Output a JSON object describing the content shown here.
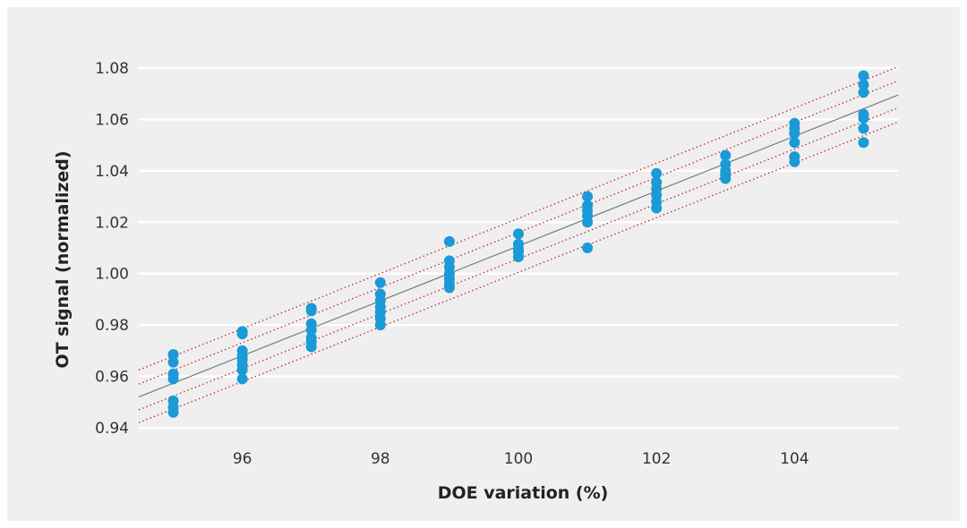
{
  "chart_data": {
    "type": "scatter",
    "title": "",
    "xlabel": "DOE variation (%)",
    "ylabel": "OT signal (normalized)",
    "xlim": [
      94.5,
      105.5
    ],
    "ylim": [
      0.94,
      1.08
    ],
    "x_ticks": [
      96,
      98,
      100,
      102,
      104
    ],
    "x_tick_labels": [
      "96",
      "98",
      "100",
      "102",
      "104"
    ],
    "y_ticks": [
      0.94,
      0.96,
      0.98,
      1.0,
      1.02,
      1.04,
      1.06,
      1.08
    ],
    "y_tick_labels": [
      "0.94",
      "0.96",
      "0.98",
      "1.00",
      "1.02",
      "1.04",
      "1.06",
      "1.08"
    ],
    "grid": "horizontal",
    "series": [
      {
        "color": "#1a9ad6",
        "points": [
          {
            "x": 95,
            "y": 0.9685
          },
          {
            "x": 95,
            "y": 0.9655
          },
          {
            "x": 95,
            "y": 0.961
          },
          {
            "x": 95,
            "y": 0.959
          },
          {
            "x": 95,
            "y": 0.9505
          },
          {
            "x": 95,
            "y": 0.948
          },
          {
            "x": 95,
            "y": 0.946
          },
          {
            "x": 96,
            "y": 0.9775
          },
          {
            "x": 96,
            "y": 0.9765
          },
          {
            "x": 96,
            "y": 0.97
          },
          {
            "x": 96,
            "y": 0.968
          },
          {
            "x": 96,
            "y": 0.9665
          },
          {
            "x": 96,
            "y": 0.9645
          },
          {
            "x": 96,
            "y": 0.9625
          },
          {
            "x": 96,
            "y": 0.959
          },
          {
            "x": 97,
            "y": 0.9865
          },
          {
            "x": 97,
            "y": 0.9855
          },
          {
            "x": 97,
            "y": 0.9805
          },
          {
            "x": 97,
            "y": 0.978
          },
          {
            "x": 97,
            "y": 0.975
          },
          {
            "x": 97,
            "y": 0.9735
          },
          {
            "x": 97,
            "y": 0.9715
          },
          {
            "x": 98,
            "y": 0.9965
          },
          {
            "x": 98,
            "y": 0.992
          },
          {
            "x": 98,
            "y": 0.9895
          },
          {
            "x": 98,
            "y": 0.987
          },
          {
            "x": 98,
            "y": 0.985
          },
          {
            "x": 98,
            "y": 0.9825
          },
          {
            "x": 98,
            "y": 0.98
          },
          {
            "x": 99,
            "y": 1.0125
          },
          {
            "x": 99,
            "y": 1.005
          },
          {
            "x": 99,
            "y": 1.0025
          },
          {
            "x": 99,
            "y": 1.0
          },
          {
            "x": 99,
            "y": 0.998
          },
          {
            "x": 99,
            "y": 0.996
          },
          {
            "x": 99,
            "y": 0.9945
          },
          {
            "x": 100,
            "y": 1.0155
          },
          {
            "x": 100,
            "y": 1.0115
          },
          {
            "x": 100,
            "y": 1.0095
          },
          {
            "x": 100,
            "y": 1.0085
          },
          {
            "x": 100,
            "y": 1.0065
          },
          {
            "x": 101,
            "y": 1.03
          },
          {
            "x": 101,
            "y": 1.0265
          },
          {
            "x": 101,
            "y": 1.0245
          },
          {
            "x": 101,
            "y": 1.0225
          },
          {
            "x": 101,
            "y": 1.02
          },
          {
            "x": 101,
            "y": 1.01
          },
          {
            "x": 102,
            "y": 1.039
          },
          {
            "x": 102,
            "y": 1.0355
          },
          {
            "x": 102,
            "y": 1.033
          },
          {
            "x": 102,
            "y": 1.0305
          },
          {
            "x": 102,
            "y": 1.028
          },
          {
            "x": 102,
            "y": 1.0255
          },
          {
            "x": 103,
            "y": 1.046
          },
          {
            "x": 103,
            "y": 1.0425
          },
          {
            "x": 103,
            "y": 1.04
          },
          {
            "x": 103,
            "y": 1.0385
          },
          {
            "x": 103,
            "y": 1.037
          },
          {
            "x": 104,
            "y": 1.0585
          },
          {
            "x": 104,
            "y": 1.0565
          },
          {
            "x": 104,
            "y": 1.0545
          },
          {
            "x": 104,
            "y": 1.051
          },
          {
            "x": 104,
            "y": 1.0455
          },
          {
            "x": 104,
            "y": 1.0435
          },
          {
            "x": 105,
            "y": 1.077
          },
          {
            "x": 105,
            "y": 1.0735
          },
          {
            "x": 105,
            "y": 1.0705
          },
          {
            "x": 105,
            "y": 1.062
          },
          {
            "x": 105,
            "y": 1.0605
          },
          {
            "x": 105,
            "y": 1.0565
          },
          {
            "x": 105,
            "y": 1.051
          }
        ]
      }
    ],
    "fit_line": {
      "color": "#7a7a7a",
      "x": [
        94.5,
        105.5
      ],
      "y": [
        0.952,
        1.0695
      ]
    },
    "bound_lines": {
      "color": "#c0282e",
      "style": "dotted",
      "x": [
        94.5,
        105.5
      ],
      "lines": [
        {
          "y": [
            0.9625,
            1.0805
          ]
        },
        {
          "y": [
            0.957,
            1.075
          ]
        },
        {
          "y": [
            0.947,
            1.0645
          ]
        },
        {
          "y": [
            0.942,
            1.059
          ]
        }
      ]
    }
  }
}
